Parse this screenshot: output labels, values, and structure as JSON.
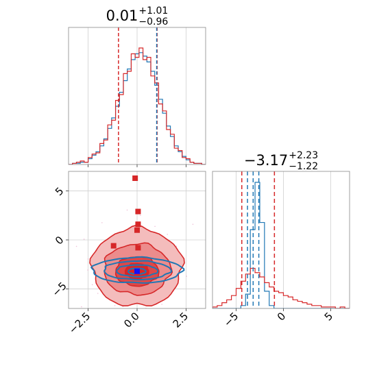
{
  "chart_data": [
    {
      "type": "histogram",
      "panel": "top-left marginal (parameter 1)",
      "title_value": "0.01",
      "title_plus": "+1.01",
      "title_minus": "−0.96",
      "xlim": [
        -3.5,
        3.5
      ],
      "grid": true,
      "bin_edges": [
        -3.5,
        -3.3,
        -3.1,
        -2.9,
        -2.7,
        -2.5,
        -2.3,
        -2.1,
        -1.9,
        -1.7,
        -1.5,
        -1.3,
        -1.1,
        -0.9,
        -0.7,
        -0.5,
        -0.3,
        -0.1,
        0.1,
        0.3,
        0.5,
        0.7,
        0.9,
        1.1,
        1.3,
        1.5,
        1.7,
        1.9,
        2.1,
        2.3,
        2.5,
        2.7,
        2.9,
        3.1,
        3.3,
        3.5
      ],
      "series": [
        {
          "color": "#1f77b4",
          "counts": [
            0,
            1,
            1,
            2,
            2,
            5,
            8,
            11,
            16,
            22,
            31,
            40,
            50,
            62,
            72,
            82,
            90,
            95,
            96,
            93,
            88,
            80,
            68,
            56,
            44,
            33,
            24,
            16,
            11,
            7,
            4,
            2,
            1,
            1,
            0
          ]
        },
        {
          "color": "#d62728",
          "counts": [
            0,
            1,
            2,
            3,
            2,
            6,
            9,
            10,
            18,
            21,
            34,
            38,
            55,
            60,
            78,
            80,
            95,
            92,
            100,
            90,
            92,
            76,
            70,
            52,
            46,
            30,
            26,
            14,
            12,
            6,
            5,
            2,
            1,
            1,
            0
          ]
        }
      ],
      "vlines": [
        {
          "x": -0.95,
          "color": "#d62728"
        },
        {
          "x": 1.02,
          "color": "#d62728"
        },
        {
          "x": 1.0,
          "color": "#1f77b4"
        }
      ]
    },
    {
      "type": "histogram",
      "panel": "bottom-right marginal (parameter 2)",
      "title_value": "−3.17",
      "title_plus": "+2.23",
      "title_minus": "−1.22",
      "xlim": [
        -7.5,
        7.0
      ],
      "xticks": [
        -5,
        0,
        5
      ],
      "xtick_labels": [
        "−5",
        "0",
        "5"
      ],
      "grid": true,
      "bin_edges": [
        -7.5,
        -7.0,
        -6.5,
        -6.0,
        -5.5,
        -5.0,
        -4.5,
        -4.0,
        -3.5,
        -3.0,
        -2.5,
        -2.0,
        -1.5,
        -1.0,
        -0.5,
        0.0,
        0.5,
        1.0,
        1.5,
        2.0,
        2.5,
        3.0,
        3.5,
        4.0,
        4.5,
        5.0,
        5.5,
        6.0,
        6.5,
        7.0
      ],
      "series": [
        {
          "color": "#1f77b4",
          "counts": [
            0,
            0,
            0,
            0,
            0,
            0,
            2,
            10,
            55,
            88,
            60,
            12,
            2,
            0,
            0,
            0,
            0,
            0,
            0,
            0,
            0,
            0,
            0,
            0,
            0,
            0,
            0,
            0,
            0
          ]
        },
        {
          "color": "#d62728",
          "counts": [
            1,
            2,
            4,
            6,
            9,
            14,
            19,
            24,
            28,
            25,
            22,
            18,
            15,
            12,
            11,
            9,
            8,
            6,
            5,
            4,
            3,
            2,
            2,
            1,
            1,
            1,
            0,
            1,
            0
          ]
        }
      ],
      "vlines": [
        {
          "x": -4.4,
          "color": "#d62728"
        },
        {
          "x": -0.95,
          "color": "#d62728"
        },
        {
          "x": -3.8,
          "color": "#1f77b4"
        },
        {
          "x": -3.2,
          "color": "#1f77b4"
        },
        {
          "x": -2.6,
          "color": "#1f77b4"
        }
      ]
    },
    {
      "type": "contour",
      "panel": "bottom-left joint (parameter 1 vs parameter 2)",
      "xlim": [
        -3.5,
        3.5
      ],
      "ylim": [
        -7,
        7
      ],
      "xticks": [
        -2.5,
        0.0,
        2.5
      ],
      "xtick_labels": [
        "−2.5",
        "0.0",
        "2.5"
      ],
      "yticks": [
        -5,
        0,
        5
      ],
      "ytick_labels": [
        "−5",
        "0",
        "5"
      ],
      "grid": true,
      "red_levels": [
        {
          "cx": 0.0,
          "cy": -2.8,
          "rx": 2.3,
          "ry": 4.0,
          "fill": "#f4bcbc"
        },
        {
          "cx": 0.0,
          "cy": -3.0,
          "rx": 1.7,
          "ry": 2.6,
          "fill": "#ec8c8c"
        },
        {
          "cx": 0.0,
          "cy": -3.2,
          "rx": 1.1,
          "ry": 1.5,
          "fill": "#dd4848"
        },
        {
          "cx": 0.0,
          "cy": -3.2,
          "rx": 0.6,
          "ry": 0.8,
          "fill": "#d62728"
        }
      ],
      "blue_levels": [
        {
          "cx": 0.0,
          "cy": -3.1,
          "rx": 2.3,
          "ry": 1.3
        },
        {
          "cx": 0.0,
          "cy": -3.1,
          "rx": 1.7,
          "ry": 0.95
        },
        {
          "cx": 0.0,
          "cy": -3.15,
          "rx": 1.05,
          "ry": 0.6
        },
        {
          "cx": 0.0,
          "cy": -3.2,
          "rx": 0.45,
          "ry": 0.3
        }
      ],
      "red_markers": [
        {
          "x": -0.1,
          "y": 6.3
        },
        {
          "x": 0.05,
          "y": 2.9
        },
        {
          "x": 0.05,
          "y": 1.6
        },
        {
          "x": 0.0,
          "y": 1.0
        },
        {
          "x": -1.2,
          "y": -0.6
        },
        {
          "x": 0.05,
          "y": -0.8
        },
        {
          "x": 0.0,
          "y": -3.3
        }
      ],
      "blue_marker": {
        "x": 0.0,
        "y": -3.2
      },
      "colors": {
        "red": "#d62728",
        "blue": "#1f77b4",
        "dots": "#e8a7c8"
      }
    }
  ]
}
